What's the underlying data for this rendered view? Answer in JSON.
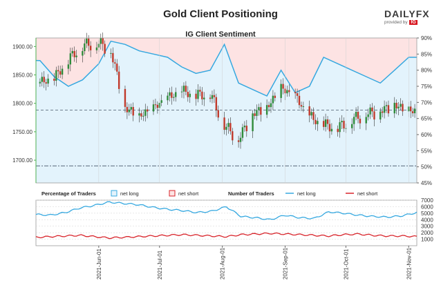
{
  "title": "Gold Client Positioning",
  "subtitle": "IG Client Sentiment",
  "logo": {
    "brand_left": "DAILY",
    "brand_right": "FX",
    "provided_by": "provided by",
    "ig": "IG"
  },
  "colors": {
    "candle_up": "#2e8b3a",
    "candle_down": "#c0392b",
    "net_long_line": "#35a8e0",
    "net_long_fill": "#e3f3fc",
    "net_short_fill": "#fde3e3",
    "net_short_line": "#d8232a",
    "dashed": "#445566"
  },
  "chart_data": [
    {
      "type": "candlestick",
      "x": [
        "2021-05-03",
        "2021-05-10",
        "2021-05-17",
        "2021-05-24",
        "2021-06-01",
        "2021-06-07",
        "2021-06-14",
        "2021-06-21",
        "2021-06-28",
        "2021-07-05",
        "2021-07-12",
        "2021-07-19",
        "2021-07-26",
        "2021-08-02",
        "2021-08-09",
        "2021-08-16",
        "2021-08-23",
        "2021-08-30",
        "2021-09-06",
        "2021-09-13",
        "2021-09-20",
        "2021-09-27",
        "2021-10-04",
        "2021-10-11",
        "2021-10-18",
        "2021-10-25",
        "2021-11-01"
      ],
      "series": [
        {
          "name": "",
          "values": [
            1835,
            1842,
            1875,
            1900,
            1905,
            1890,
            1790,
            1775,
            1790,
            1808,
            1820,
            1812,
            1815,
            1760,
            1735,
            1780,
            1790,
            1825,
            1810,
            1775,
            1760,
            1755,
            1770,
            1780,
            1785,
            1795,
            1785
          ]
        }
      ],
      "ylim": [
        1660,
        1915
      ],
      "y_ticks": [
        "1700.00",
        "1750.00",
        "1800.00",
        "1850.00",
        "1900.00"
      ],
      "horizontal_lines": [
        1788,
        1690
      ]
    },
    {
      "type": "line",
      "series": [
        {
          "name": "net long",
          "values": [
            83,
            78,
            75,
            77,
            82,
            89,
            88,
            86,
            85,
            84,
            81,
            79,
            80,
            88,
            76,
            74,
            72,
            80,
            73,
            75,
            84,
            82,
            80,
            78,
            76,
            80,
            84
          ]
        }
      ],
      "ylim": [
        45,
        90
      ],
      "y_ticks": [
        "45%",
        "50%",
        "55%",
        "60%",
        "65%",
        "70%",
        "75%",
        "80%",
        "85%",
        "90%"
      ]
    },
    {
      "type": "line",
      "legend_title_1": "Percentage of Traders",
      "legend_title_2": "Number of Traders",
      "legend_items_1": [
        "net long",
        "net short"
      ],
      "legend_items_2": [
        "net long",
        "net short"
      ],
      "series": [
        {
          "name": "net long",
          "values": [
            4800,
            4700,
            5100,
            5800,
            6200,
            6700,
            6500,
            6300,
            5900,
            5600,
            5400,
            5100,
            5300,
            6000,
            4500,
            4300,
            4000,
            4700,
            4300,
            4200,
            5200,
            5000,
            4700,
            4500,
            4400,
            4600,
            5100
          ]
        },
        {
          "name": "net short",
          "values": [
            1300,
            1400,
            1500,
            1600,
            1400,
            1200,
            1300,
            1400,
            1500,
            1600,
            1700,
            1600,
            1500,
            1400,
            1700,
            1800,
            1900,
            1800,
            1700,
            1600,
            1500,
            1700,
            1800,
            1600,
            1500,
            1500,
            1400
          ]
        }
      ],
      "ylim": [
        0,
        7000
      ],
      "y_ticks": [
        "1000",
        "2000",
        "3000",
        "4000",
        "5000",
        "6000",
        "7000"
      ]
    }
  ],
  "x_ticks": [
    "2021-Jun-01",
    "2021-Jul-01",
    "2021-Aug-01",
    "2021-Sep-01",
    "2021-Oct-01",
    "2021-Nov-01"
  ]
}
